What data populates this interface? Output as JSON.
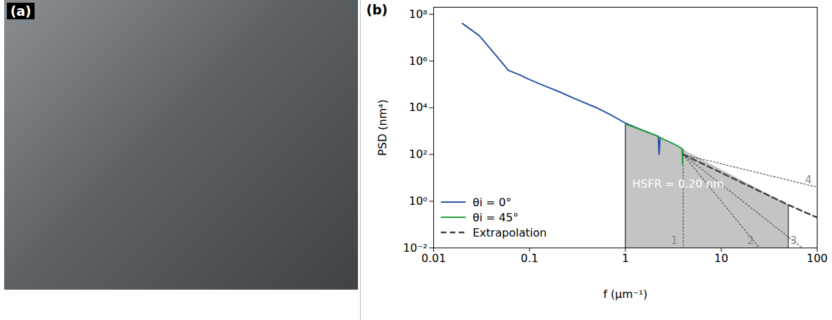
{
  "image_panel": {
    "label": "(a)"
  },
  "chart_data": {
    "type": "line",
    "panel_label": "(b)",
    "x_label": "f (µm⁻¹)",
    "y_label": "PSD (nm⁴)",
    "log": true,
    "xlim": [
      0.01,
      100
    ],
    "xticks": [
      0.01,
      0.1,
      1,
      10,
      100
    ],
    "ylim": [
      0.01,
      200000000
    ],
    "yticks": [
      {
        "value": 0.01,
        "label": "10⁻²"
      },
      {
        "value": 1,
        "label": "10⁰"
      },
      {
        "value": 100,
        "label": "10²"
      },
      {
        "value": 10000,
        "label": "10⁴"
      },
      {
        "value": 1000000,
        "label": "10⁶"
      },
      {
        "value": 100000000,
        "label": "10⁸"
      }
    ],
    "legend": "lower left",
    "series": [
      {
        "name": "θi = 0°",
        "color": "#2451a6",
        "line_style": "solid",
        "x": [
          0.02,
          0.03,
          0.04,
          0.05,
          0.06,
          0.08,
          0.1,
          0.15,
          0.2,
          0.3,
          0.5,
          0.7,
          1,
          1.5,
          2,
          2.2,
          2.25,
          2.3
        ],
        "values": [
          40000000,
          12000000,
          3000000,
          1000000,
          400000,
          250000,
          160000,
          80000,
          50000,
          24000,
          10000,
          5000,
          2200,
          1100,
          700,
          600,
          100,
          500
        ]
      },
      {
        "name": "θi = 45°",
        "color": "#1fa33a",
        "line_style": "solid",
        "x": [
          1,
          1.5,
          2,
          2.5,
          3,
          3.5,
          3.9,
          3.95,
          4
        ],
        "values": [
          2000,
          1100,
          700,
          450,
          320,
          230,
          180,
          40,
          160
        ]
      },
      {
        "name": "Extrapolation",
        "color": "#404040",
        "line_style": "dashed",
        "x": [
          4,
          50,
          100
        ],
        "values": [
          100,
          0.7,
          0.2
        ]
      }
    ],
    "hsfr_band": {
      "range": [
        1,
        50
      ],
      "label": "HSFR = 0.20 nm"
    },
    "extrapolation_lines": [
      {
        "label": "1",
        "line_style": "dotted",
        "x": [
          4,
          4
        ],
        "values": [
          100,
          0.01
        ]
      },
      {
        "label": "2",
        "line_style": "dotted",
        "x": [
          4,
          25
        ],
        "values": [
          100,
          0.01
        ]
      },
      {
        "label": "3",
        "line_style": "dotted",
        "x": [
          4,
          70
        ],
        "values": [
          100,
          0.01
        ]
      },
      {
        "label": "4",
        "line_style": "dotted",
        "x": [
          4,
          100
        ],
        "values": [
          100,
          4
        ]
      }
    ]
  }
}
